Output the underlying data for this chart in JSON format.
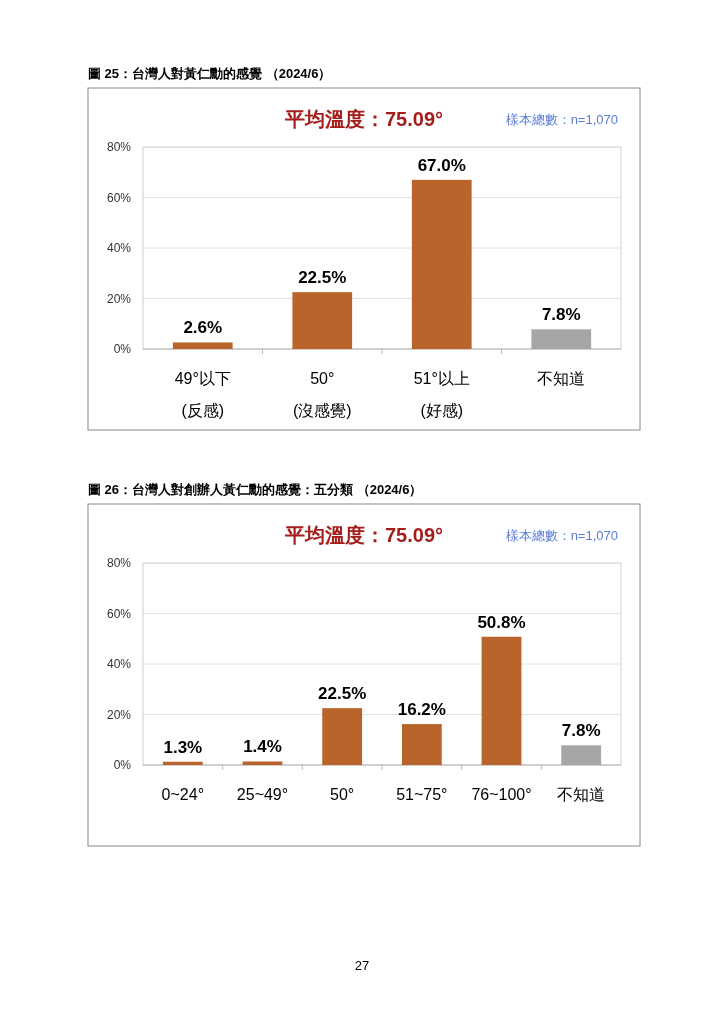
{
  "chart_data": [
    {
      "type": "bar",
      "title": "圖 25：台灣人對黃仁勳的感覺 （2024/6）",
      "subtitle": "平均溫度：75.09°",
      "annotations": [
        "樣本總數：n=1,070"
      ],
      "categories": [
        "49°以下\n(反感)",
        "50°\n(沒感覺)",
        "51°以上\n(好感)",
        "不知道"
      ],
      "values": [
        2.6,
        22.5,
        67.0,
        7.8
      ],
      "value_labels": [
        "2.6%",
        "22.5%",
        "67.0%",
        "7.8%"
      ],
      "colors": [
        "#b8642a",
        "#b8642a",
        "#b8642a",
        "#a6a6a6"
      ],
      "ylim": [
        0,
        80
      ],
      "yticks": [
        {
          "value": 0,
          "label": "0%"
        },
        {
          "value": 20,
          "label": "20%"
        },
        {
          "value": 40,
          "label": "40%"
        },
        {
          "value": 60,
          "label": "60%"
        },
        {
          "value": 80,
          "label": "80%"
        }
      ],
      "grid": "y"
    },
    {
      "type": "bar",
      "title": "圖 26：台灣人對創辦人黃仁勳的感覺：五分類 （2024/6）",
      "subtitle": "平均溫度：75.09°",
      "annotations": [
        "樣本總數：n=1,070",
        "27"
      ],
      "categories": [
        "0~24°",
        "25~49°",
        "50°",
        "51~75°",
        "76~100°",
        "不知道"
      ],
      "values": [
        1.3,
        1.4,
        22.5,
        16.2,
        50.8,
        7.8
      ],
      "value_labels": [
        "1.3%",
        "1.4%",
        "22.5%",
        "16.2%",
        "50.8%",
        "7.8%"
      ],
      "colors": [
        "#b8642a",
        "#b8642a",
        "#b8642a",
        "#b8642a",
        "#b8642a",
        "#a6a6a6"
      ],
      "ylim": [
        0,
        80
      ],
      "yticks": [
        {
          "value": 0,
          "label": "0%"
        },
        {
          "value": 20,
          "label": "20%"
        },
        {
          "value": 40,
          "label": "40%"
        },
        {
          "value": 60,
          "label": "60%"
        },
        {
          "value": 80,
          "label": "80%"
        }
      ],
      "grid": "y"
    }
  ]
}
